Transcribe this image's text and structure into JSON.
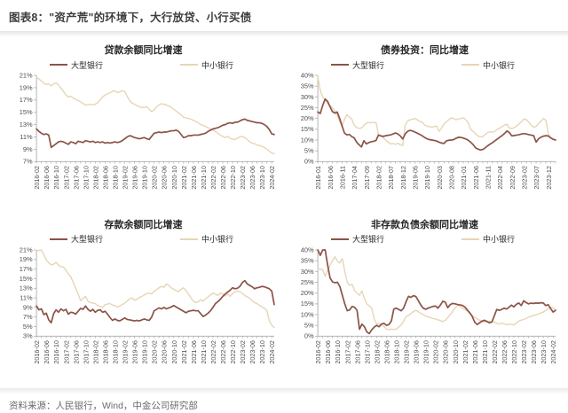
{
  "page": {
    "title": "图表8：\"资产荒\"的环境下，大行放贷、小行买债",
    "source": "资料来源：人民银行，Wind，中金公司研究部"
  },
  "colors": {
    "large_bank": "#8c5347",
    "small_bank": "#e8d5b5",
    "axis_line": "#adadad",
    "tick_text": "#4d4d4d"
  },
  "chart_data": [
    {
      "type": "line",
      "title": "贷款余额同比增速",
      "x_start": "2016-02",
      "label_every": 4,
      "x_tick_labels": [
        "2016-02",
        "2016-06",
        "2016-10",
        "2017-02",
        "2017-06",
        "2017-10",
        "2018-02",
        "2018-06",
        "2018-10",
        "2019-02",
        "2019-06",
        "2019-10",
        "2020-02",
        "2020-06",
        "2020-10",
        "2021-02",
        "2021-06",
        "2021-10",
        "2022-02",
        "2022-06",
        "2022-10",
        "2023-02",
        "2023-06",
        "2023-10",
        "2024-02"
      ],
      "ylim": [
        7,
        21
      ],
      "ytick_step": 2,
      "y_tick_labels": [
        "7%",
        "9%",
        "11%",
        "13%",
        "15%",
        "17%",
        "19%",
        "21%"
      ],
      "series": [
        {
          "name": "大型银行",
          "color": "#8c5347",
          "values": [
            12.3,
            11.9,
            11.6,
            11.4,
            11.5,
            11.3,
            9.3,
            9.6,
            9.9,
            10.2,
            10.3,
            10.2,
            10.0,
            9.8,
            10.2,
            10.1,
            9.9,
            10.3,
            10.2,
            10.1,
            10.4,
            10.3,
            10.2,
            10.3,
            10.1,
            10.2,
            10.1,
            10.2,
            10.0,
            10.1,
            10.0,
            10.1,
            10.2,
            10.1,
            10.2,
            10.4,
            10.7,
            11.0,
            11.2,
            11.1,
            10.9,
            10.8,
            10.7,
            10.8,
            10.9,
            10.7,
            10.6,
            11.1,
            11.6,
            11.7,
            11.8,
            11.7,
            11.8,
            11.8,
            11.9,
            12.0,
            12.0,
            12.1,
            11.9,
            11.4,
            10.9,
            11.0,
            11.2,
            11.2,
            11.3,
            11.3,
            11.3,
            11.4,
            11.5,
            11.6,
            11.9,
            12.1,
            12.3,
            12.4,
            12.5,
            12.7,
            12.9,
            13.0,
            13.2,
            13.3,
            13.2,
            13.4,
            13.4,
            13.6,
            13.8,
            13.9,
            13.7,
            13.6,
            13.5,
            13.4,
            13.3,
            13.3,
            13.2,
            13.0,
            12.7,
            12.2,
            11.5,
            11.4
          ]
        },
        {
          "name": "中小银行",
          "color": "#e8d5b5",
          "values": [
            20.7,
            20.4,
            20.1,
            19.7,
            19.5,
            19.6,
            19.3,
            19.6,
            19.8,
            19.4,
            18.9,
            18.4,
            17.8,
            17.5,
            17.6,
            17.3,
            17.1,
            16.9,
            16.7,
            16.4,
            16.2,
            16.2,
            16.3,
            16.2,
            16.3,
            16.6,
            17.0,
            17.5,
            17.8,
            18.0,
            18.2,
            18.4,
            18.5,
            18.2,
            18.3,
            18.5,
            18.4,
            17.6,
            16.9,
            16.5,
            16.3,
            16.1,
            15.9,
            15.8,
            15.8,
            15.9,
            15.5,
            15.1,
            15.4,
            15.9,
            16.2,
            16.4,
            16.3,
            16.2,
            16.0,
            15.8,
            15.5,
            15.2,
            14.9,
            14.6,
            14.2,
            14.1,
            14.0,
            13.9,
            13.7,
            13.5,
            13.3,
            13.0,
            12.9,
            12.7,
            12.5,
            12.3,
            12.1,
            11.9,
            11.6,
            11.3,
            11.1,
            10.9,
            11.1,
            10.8,
            10.6,
            10.6,
            10.8,
            11.0,
            11.1,
            10.9,
            10.6,
            10.2,
            10.0,
            9.9,
            9.7,
            9.6,
            9.5,
            9.3,
            9.0,
            8.7,
            8.4,
            8.3
          ]
        }
      ]
    },
    {
      "type": "line",
      "title": "债券投资：同比增速",
      "x_start": "2016-01",
      "label_every": 5,
      "x_tick_labels": [
        "2016-01",
        "2016-06",
        "2016-11",
        "2017-04",
        "2017-09",
        "2018-02",
        "2018-07",
        "2018-12",
        "2019-05",
        "2019-10",
        "2020-03",
        "2020-08",
        "2021-01",
        "2021-06",
        "2021-11",
        "2022-04",
        "2022-09",
        "2023-02",
        "2023-07",
        "2023-12"
      ],
      "ylim": [
        0,
        40
      ],
      "ytick_step": 5,
      "y_tick_labels": [
        "0%",
        "5%",
        "10%",
        "15%",
        "20%",
        "25%",
        "30%",
        "35%",
        "40%"
      ],
      "series": [
        {
          "name": "大型银行",
          "color": "#8c5347",
          "values": [
            23.0,
            22.3,
            26.0,
            29.0,
            28.0,
            25.5,
            23.2,
            22.5,
            23.0,
            20.0,
            16.5,
            13.2,
            12.4,
            12.6,
            11.6,
            11.0,
            9.0,
            7.8,
            6.8,
            9.7,
            8.2,
            8.8,
            9.2,
            9.4,
            9.8,
            12.3,
            11.9,
            11.7,
            12.0,
            12.2,
            12.4,
            12.8,
            13.3,
            12.8,
            11.9,
            10.5,
            12.8,
            14.0,
            14.5,
            14.2,
            13.7,
            13.2,
            12.6,
            12.0,
            11.2,
            10.6,
            10.2,
            10.0,
            9.8,
            9.5,
            9.0,
            8.6,
            8.4,
            9.6,
            9.9,
            10.0,
            10.2,
            10.8,
            11.3,
            11.2,
            10.9,
            10.5,
            9.9,
            9.0,
            7.9,
            6.4,
            5.8,
            5.4,
            5.6,
            6.4,
            7.3,
            8.1,
            8.8,
            9.6,
            10.5,
            11.3,
            12.1,
            13.1,
            14.2,
            13.4,
            11.9,
            12.1,
            12.3,
            12.5,
            12.8,
            13.0,
            12.8,
            12.5,
            12.3,
            12.0,
            9.0,
            10.6,
            11.3,
            11.8,
            12.0,
            11.9,
            11.0,
            10.4,
            10.0
          ]
        },
        {
          "name": "中小银行",
          "color": "#e8d5b5",
          "values": [
            39.5,
            33.0,
            30.0,
            28.5,
            27.0,
            26.0,
            25.0,
            23.5,
            21.5,
            18.5,
            16.6,
            19.5,
            21.8,
            20.6,
            19.8,
            16.8,
            15.8,
            15.4,
            15.6,
            16.8,
            17.8,
            18.2,
            18.0,
            18.2,
            18.0,
            12.6,
            12.0,
            11.0,
            10.0,
            9.0,
            8.2,
            8.4,
            8.0,
            8.5,
            7.8,
            7.4,
            16.8,
            18.8,
            19.4,
            19.7,
            20.0,
            19.4,
            18.6,
            18.3,
            17.0,
            16.4,
            16.2,
            16.0,
            16.2,
            16.5,
            14.0,
            15.5,
            17.4,
            18.4,
            19.4,
            20.3,
            19.9,
            19.4,
            19.8,
            20.0,
            20.3,
            19.4,
            17.9,
            15.0,
            14.0,
            12.9,
            11.9,
            11.4,
            11.6,
            12.5,
            13.5,
            13.8,
            13.6,
            14.0,
            15.0,
            15.6,
            16.2,
            17.0,
            17.3,
            15.6,
            15.3,
            15.8,
            16.5,
            17.5,
            18.6,
            19.8,
            19.4,
            18.2,
            16.8,
            16.0,
            16.3,
            17.6,
            18.8,
            20.0,
            19.2,
            13.0,
            10.8,
            10.2,
            9.8
          ]
        }
      ]
    },
    {
      "type": "line",
      "title": "存款余额同比增速",
      "x_start": "2016-02",
      "label_every": 4,
      "x_tick_labels": [
        "2016-02",
        "2016-06",
        "2016-10",
        "2017-02",
        "2017-06",
        "2017-10",
        "2018-02",
        "2018-06",
        "2018-10",
        "2019-02",
        "2019-06",
        "2019-10",
        "2020-02",
        "2020-06",
        "2020-10",
        "2021-02",
        "2021-06",
        "2021-10",
        "2022-02",
        "2022-06",
        "2022-10",
        "2023-02",
        "2023-06",
        "2023-10",
        "2024-02"
      ],
      "ylim": [
        3,
        21
      ],
      "ytick_step": 2,
      "y_tick_labels": [
        "3%",
        "5%",
        "7%",
        "9%",
        "11%",
        "13%",
        "15%",
        "17%",
        "19%",
        "21%"
      ],
      "series": [
        {
          "name": "大型银行",
          "color": "#8c5347",
          "values": [
            9.3,
            8.5,
            8.7,
            7.5,
            7.8,
            6.4,
            5.8,
            7.7,
            8.5,
            8.0,
            8.7,
            8.3,
            8.6,
            7.6,
            8.0,
            7.9,
            7.6,
            8.2,
            8.8,
            8.6,
            9.3,
            8.6,
            8.2,
            8.6,
            8.0,
            8.4,
            8.5,
            8.0,
            8.2,
            7.6,
            6.9,
            6.3,
            6.6,
            6.3,
            6.2,
            6.5,
            6.8,
            6.5,
            6.4,
            6.3,
            6.2,
            6.3,
            6.2,
            6.4,
            6.6,
            6.4,
            6.3,
            7.0,
            8.3,
            8.6,
            8.9,
            8.7,
            9.0,
            8.7,
            8.9,
            9.1,
            9.4,
            9.1,
            8.8,
            8.5,
            8.2,
            7.9,
            8.2,
            8.3,
            8.4,
            8.3,
            8.3,
            7.7,
            7.1,
            7.4,
            7.8,
            8.3,
            9.0,
            9.8,
            10.2,
            10.7,
            11.3,
            11.8,
            12.2,
            12.6,
            13.1,
            12.9,
            13.0,
            13.4,
            14.2,
            14.6,
            13.9,
            13.6,
            13.3,
            12.9,
            13.1,
            13.2,
            13.4,
            13.3,
            13.1,
            12.9,
            12.4,
            9.6
          ]
        },
        {
          "name": "中小银行",
          "color": "#e8d5b5",
          "values": [
            20.8,
            20.9,
            21.0,
            20.0,
            18.9,
            18.3,
            17.9,
            18.0,
            18.4,
            17.8,
            17.5,
            17.4,
            16.8,
            16.0,
            15.4,
            14.2,
            13.0,
            11.8,
            10.4,
            10.9,
            11.3,
            10.3,
            10.0,
            9.9,
            9.8,
            9.4,
            9.2,
            9.0,
            9.6,
            9.7,
            9.8,
            9.5,
            9.4,
            9.1,
            9.3,
            9.6,
            9.9,
            10.3,
            10.8,
            11.0,
            10.5,
            10.7,
            11.1,
            11.3,
            11.6,
            11.9,
            12.0,
            11.8,
            12.4,
            12.7,
            13.1,
            13.4,
            13.2,
            13.9,
            13.6,
            13.1,
            12.8,
            12.5,
            12.3,
            12.8,
            13.1,
            12.5,
            11.8,
            11.0,
            10.3,
            10.0,
            10.2,
            10.6,
            10.3,
            10.8,
            11.2,
            11.6,
            12.0,
            11.8,
            11.5,
            12.0,
            11.8,
            11.4,
            11.8,
            11.3,
            11.9,
            12.2,
            12.4,
            12.3,
            11.9,
            11.5,
            11.2,
            10.9,
            10.4,
            10.0,
            9.8,
            9.4,
            9.1,
            8.8,
            8.4,
            6.2,
            5.3,
            4.8
          ]
        }
      ]
    },
    {
      "type": "line",
      "title": "非存款负债余额同比增速",
      "x_start": "2016-02",
      "label_every": 4,
      "x_tick_labels": [
        "2016-02",
        "2016-06",
        "2016-10",
        "2017-02",
        "2017-06",
        "2017-10",
        "2018-02",
        "2018-06",
        "2018-10",
        "2019-02",
        "2019-06",
        "2019-10",
        "2020-02",
        "2020-06",
        "2020-10",
        "2021-02",
        "2021-06",
        "2021-10",
        "2022-02",
        "2022-06",
        "2022-10",
        "2023-02",
        "2023-06",
        "2023-10",
        "2024-02"
      ],
      "ylim": [
        0,
        40
      ],
      "ytick_step": 5,
      "y_tick_labels": [
        "0%",
        "5%",
        "10%",
        "15%",
        "20%",
        "25%",
        "30%",
        "35%",
        "40%"
      ],
      "series": [
        {
          "name": "大型银行",
          "color": "#8c5347",
          "values": [
            40.0,
            37.5,
            40.0,
            40.0,
            33.0,
            27.0,
            25.2,
            24.8,
            25.0,
            23.0,
            19.0,
            15.0,
            11.8,
            12.2,
            13.8,
            13.4,
            12.0,
            3.2,
            5.6,
            4.4,
            2.0,
            1.2,
            3.0,
            4.2,
            5.0,
            4.4,
            5.6,
            6.0,
            5.0,
            5.4,
            7.0,
            12.6,
            13.0,
            12.4,
            11.8,
            13.0,
            16.0,
            18.5,
            18.0,
            18.8,
            18.4,
            16.5,
            14.5,
            13.0,
            12.5,
            13.0,
            13.4,
            13.8,
            14.0,
            13.0,
            14.4,
            16.2,
            15.8,
            13.2,
            14.6,
            15.2,
            15.0,
            14.7,
            14.5,
            14.3,
            13.5,
            12.2,
            10.8,
            9.2,
            6.5,
            5.4,
            6.2,
            7.0,
            7.4,
            6.8,
            6.2,
            6.6,
            9.4,
            12.4,
            12.0,
            12.4,
            13.0,
            12.6,
            13.4,
            14.4,
            13.6,
            14.8,
            15.4,
            14.2,
            16.4,
            15.6,
            15.0,
            15.3,
            15.2,
            15.4,
            15.3,
            15.5,
            15.4,
            14.2,
            14.6,
            12.8,
            11.2,
            12.0
          ]
        },
        {
          "name": "中小银行",
          "color": "#e8d5b5",
          "values": [
            31.0,
            31.2,
            30.8,
            27.8,
            30.5,
            33.0,
            35.0,
            36.8,
            34.8,
            34.0,
            36.0,
            30.0,
            25.0,
            23.6,
            24.0,
            21.2,
            20.0,
            19.0,
            21.0,
            17.5,
            15.0,
            14.0,
            13.0,
            8.0,
            5.6,
            5.8,
            5.5,
            4.5,
            3.3,
            3.0,
            3.3,
            3.1,
            3.3,
            4.2,
            5.2,
            7.0,
            9.0,
            9.6,
            10.5,
            11.4,
            12.0,
            11.4,
            10.6,
            10.0,
            9.4,
            9.0,
            8.6,
            8.2,
            8.0,
            7.6,
            7.2,
            6.8,
            7.4,
            8.6,
            10.0,
            11.5,
            13.0,
            14.2,
            14.0,
            13.0,
            12.4,
            11.6,
            10.6,
            9.6,
            8.8,
            8.0,
            7.4,
            6.8,
            6.6,
            7.0,
            6.9,
            6.8,
            6.6,
            6.0,
            5.6,
            6.0,
            5.8,
            5.3,
            5.5,
            5.6,
            5.2,
            6.0,
            7.0,
            7.4,
            7.8,
            8.2,
            8.8,
            9.2,
            9.6,
            9.9,
            10.3,
            10.8,
            11.2,
            12.0,
            12.8,
            13.4,
            13.0,
            12.2
          ]
        }
      ]
    }
  ]
}
